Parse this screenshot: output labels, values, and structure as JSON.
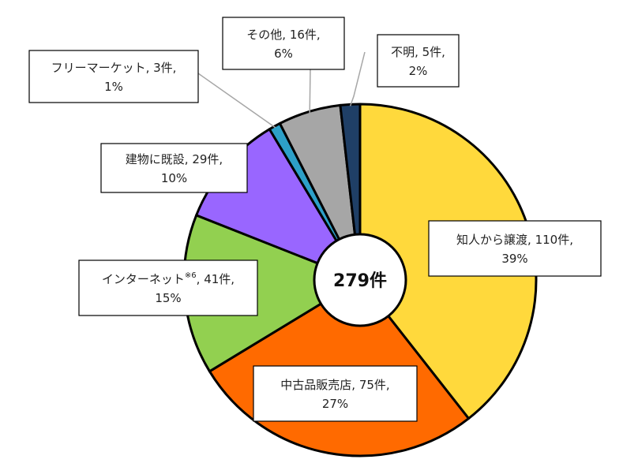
{
  "chart_data": {
    "type": "pie",
    "variant": "donut",
    "center_label": "279件",
    "categories": [
      "知人から譲渡",
      "中古品販売店",
      "インターネット",
      "建物に既設",
      "フリーマーケット",
      "その他",
      "不明"
    ],
    "values": [
      110,
      75,
      41,
      29,
      3,
      16,
      5
    ],
    "percents": [
      "39%",
      "27%",
      "15%",
      "10%",
      "1%",
      "6%",
      "2%"
    ],
    "labels_line1": [
      "知人から譲渡, 110件,",
      "中古品販売店, 75件,",
      "インターネット",
      "建物に既設, 29件,",
      "フリーマーケット, 3件,",
      "その他, 16件,",
      "不明, 5件,"
    ],
    "labels_superscript": [
      "",
      "",
      "※6",
      "",
      "",
      "",
      ""
    ],
    "labels_line1_suffix": [
      "",
      "",
      ", 41件,",
      "",
      "",
      "",
      ""
    ],
    "colors": [
      "#ffd93c",
      "#ff6a00",
      "#92d050",
      "#9966ff",
      "#2da0c8",
      "#a6a6a6",
      "#1f3f66"
    ],
    "legend": "none",
    "start_angle_deg": 0,
    "direction": "clockwise"
  }
}
